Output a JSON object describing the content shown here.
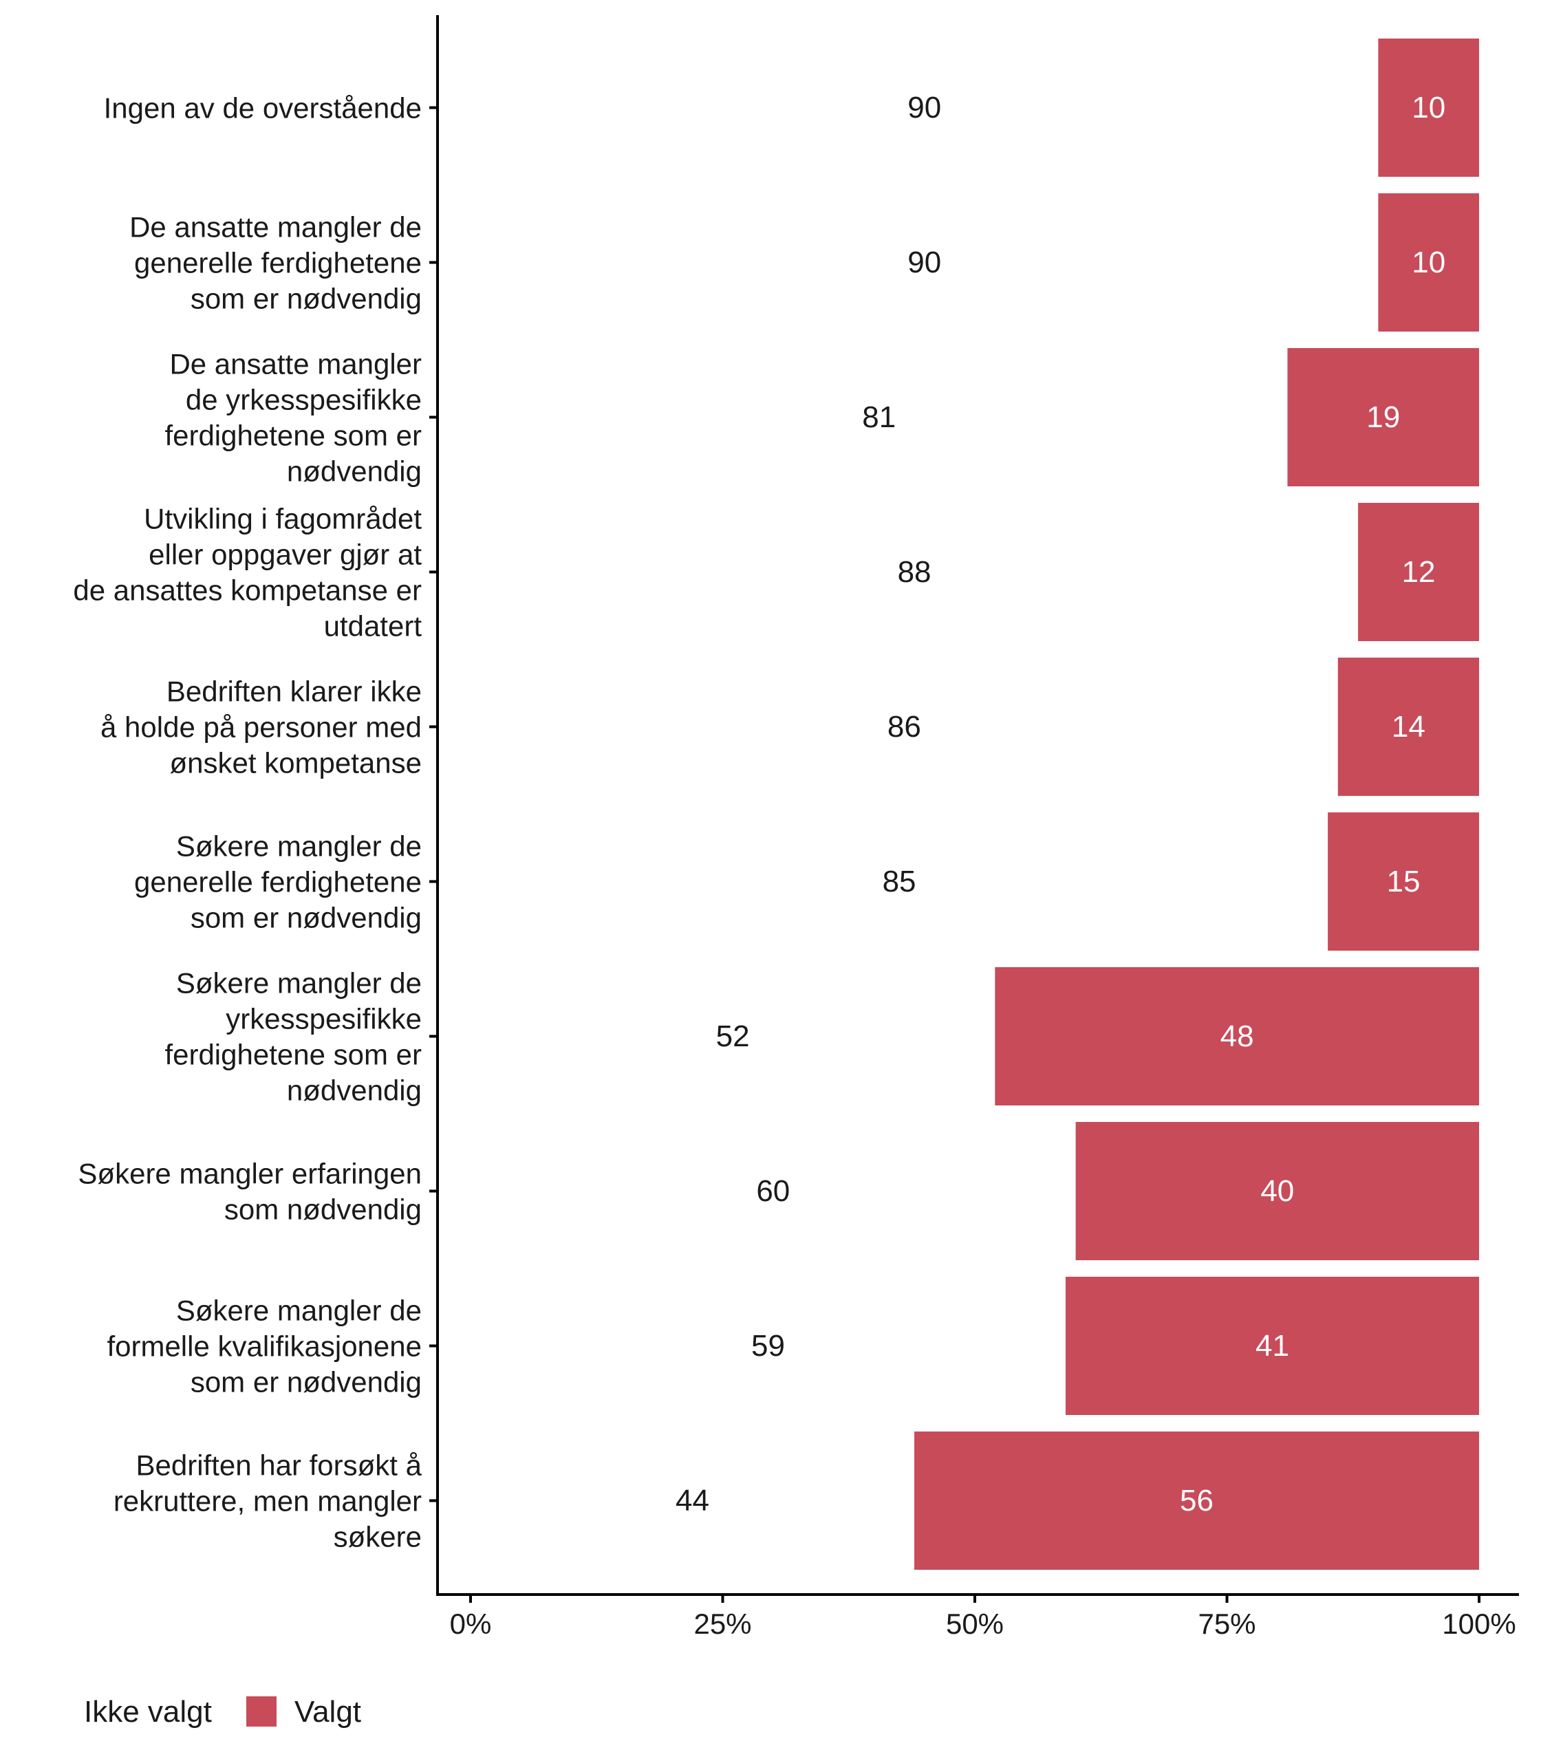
{
  "chart_data": {
    "type": "bar",
    "orientation": "horizontal",
    "stacked": "percent",
    "categories": [
      [
        "Ingen av de overstående"
      ],
      [
        "De ansatte mangler de",
        "generelle ferdighetene",
        "som er nødvendig"
      ],
      [
        "De ansatte mangler",
        "de yrkesspesifikke",
        "ferdighetene som er",
        "nødvendig"
      ],
      [
        "Utvikling i fagområdet",
        "eller oppgaver gjør at",
        "de ansattes kompetanse er",
        "utdatert"
      ],
      [
        "Bedriften klarer ikke",
        "å holde på personer med",
        "ønsket kompetanse"
      ],
      [
        "Søkere mangler de",
        "generelle ferdighetene",
        "som er nødvendig"
      ],
      [
        "Søkere mangler de",
        "yrkesspesifikke",
        "ferdighetene som er",
        "nødvendig"
      ],
      [
        "Søkere mangler erfaringen",
        "som nødvendig"
      ],
      [
        "Søkere mangler de",
        "formelle kvalifikasjonene",
        "som er nødvendig"
      ],
      [
        "Bedriften har forsøkt å",
        "rekruttere, men mangler",
        "søkere"
      ]
    ],
    "series": [
      {
        "name": "Ikke valgt",
        "color": "#ffffff",
        "label_color": "#1a1a1a",
        "values": [
          90,
          90,
          81,
          88,
          86,
          85,
          52,
          60,
          59,
          44
        ]
      },
      {
        "name": "Valgt",
        "color": "#c84b5a",
        "label_color": "#ffffff",
        "values": [
          10,
          10,
          19,
          12,
          14,
          15,
          48,
          40,
          41,
          56
        ]
      }
    ],
    "xlim": [
      0,
      100
    ],
    "x_ticks": [
      0,
      25,
      50,
      75,
      100
    ],
    "x_tick_labels": [
      "0%",
      "25%",
      "50%",
      "75%",
      "100%"
    ],
    "xlabel": "",
    "ylabel": "",
    "legend_position": "bottom-left"
  }
}
